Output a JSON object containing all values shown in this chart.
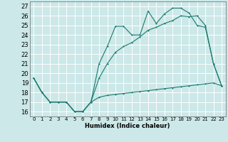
{
  "xlabel": "Humidex (Indice chaleur)",
  "bg_color": "#cce8e8",
  "grid_color": "#ffffff",
  "line_color": "#1a7a6e",
  "xlim": [
    -0.5,
    23.5
  ],
  "ylim": [
    15.5,
    27.5
  ],
  "xticks": [
    0,
    1,
    2,
    3,
    4,
    5,
    6,
    7,
    8,
    9,
    10,
    11,
    12,
    13,
    14,
    15,
    16,
    17,
    18,
    19,
    20,
    21,
    22,
    23
  ],
  "yticks": [
    16,
    17,
    18,
    19,
    20,
    21,
    22,
    23,
    24,
    25,
    26,
    27
  ],
  "line_bottom_x": [
    0,
    1,
    2,
    3,
    4,
    5,
    6,
    7,
    8,
    9,
    10,
    11,
    12,
    13,
    14,
    15,
    16,
    17,
    18,
    19,
    20,
    21,
    22,
    23
  ],
  "line_bottom_y": [
    19.5,
    18.0,
    17.0,
    17.0,
    17.0,
    16.0,
    16.0,
    17.0,
    17.5,
    17.7,
    17.8,
    17.9,
    18.0,
    18.1,
    18.2,
    18.3,
    18.4,
    18.5,
    18.6,
    18.7,
    18.8,
    18.9,
    19.0,
    18.7
  ],
  "line_top_x": [
    0,
    1,
    2,
    3,
    4,
    5,
    6,
    7,
    8,
    9,
    10,
    11,
    12,
    13,
    14,
    15,
    16,
    17,
    18,
    19,
    20,
    21,
    22,
    23
  ],
  "line_top_y": [
    19.5,
    18.0,
    17.0,
    17.0,
    17.0,
    16.0,
    16.0,
    17.0,
    21.0,
    22.8,
    24.9,
    24.9,
    24.0,
    24.0,
    26.5,
    25.2,
    26.2,
    26.8,
    26.8,
    26.3,
    25.0,
    24.8,
    21.0,
    18.7
  ],
  "line_mid_x": [
    0,
    1,
    2,
    3,
    4,
    5,
    6,
    7,
    8,
    9,
    10,
    11,
    12,
    13,
    14,
    15,
    16,
    17,
    18,
    19,
    20,
    21,
    22,
    23
  ],
  "line_mid_y": [
    19.5,
    18.0,
    17.0,
    17.0,
    17.0,
    16.0,
    16.0,
    17.0,
    19.5,
    21.0,
    22.2,
    22.8,
    23.2,
    23.8,
    24.5,
    24.8,
    25.2,
    25.5,
    26.0,
    25.9,
    26.0,
    25.0,
    21.0,
    18.7
  ]
}
